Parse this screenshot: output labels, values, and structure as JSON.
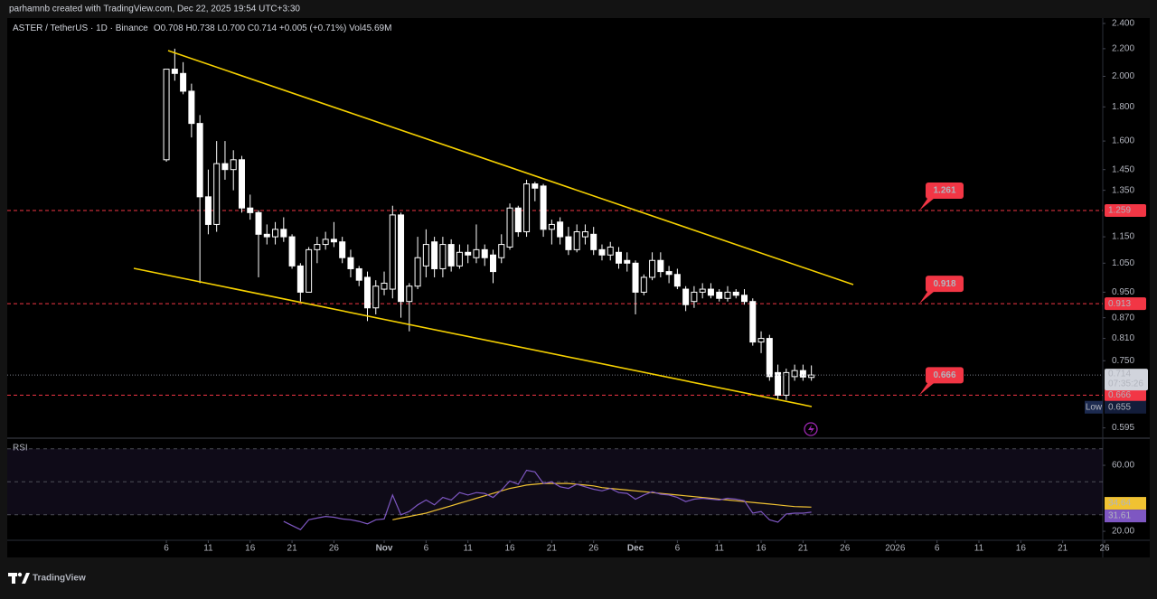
{
  "header": {
    "credit": "parhamnb created with TradingView.com, Dec 22, 2025 19:54 UTC+3:30"
  },
  "footer": {
    "brand": "TradingView"
  },
  "chart_data": [
    {
      "type": "candlestick",
      "title": "ASTER / TetherUS · 1D · Binance",
      "ohlc": "O0.708 H0.738 L0.700 C0.714 +0.005 (+0.71%) Vol45.69M",
      "x": [
        "2025-10-06",
        "2025-10-07",
        "2025-10-08",
        "2025-10-09",
        "2025-10-10",
        "2025-10-11",
        "2025-10-12",
        "2025-10-13",
        "2025-10-14",
        "2025-10-15",
        "2025-10-16",
        "2025-10-17",
        "2025-10-18",
        "2025-10-19",
        "2025-10-20",
        "2025-10-21",
        "2025-10-22",
        "2025-10-23",
        "2025-10-24",
        "2025-10-25",
        "2025-10-26",
        "2025-10-27",
        "2025-10-28",
        "2025-10-29",
        "2025-10-30",
        "2025-10-31",
        "2025-11-01",
        "2025-11-02",
        "2025-11-03",
        "2025-11-04",
        "2025-11-05",
        "2025-11-06",
        "2025-11-07",
        "2025-11-08",
        "2025-11-09",
        "2025-11-10",
        "2025-11-11",
        "2025-11-12",
        "2025-11-13",
        "2025-11-14",
        "2025-11-15",
        "2025-11-16",
        "2025-11-17",
        "2025-11-18",
        "2025-11-19",
        "2025-11-20",
        "2025-11-21",
        "2025-11-22",
        "2025-11-23",
        "2025-11-24",
        "2025-11-25",
        "2025-11-26",
        "2025-11-27",
        "2025-11-28",
        "2025-11-29",
        "2025-11-30",
        "2025-12-01",
        "2025-12-02",
        "2025-12-03",
        "2025-12-04",
        "2025-12-05",
        "2025-12-06",
        "2025-12-07",
        "2025-12-08",
        "2025-12-09",
        "2025-12-10",
        "2025-12-11",
        "2025-12-12",
        "2025-12-13",
        "2025-12-14",
        "2025-12-15",
        "2025-12-16",
        "2025-12-17",
        "2025-12-18",
        "2025-12-19",
        "2025-12-20",
        "2025-12-21",
        "2025-12-22"
      ],
      "open": [
        1.5,
        2.05,
        2.02,
        1.9,
        1.7,
        1.32,
        1.2,
        1.48,
        1.45,
        1.5,
        1.27,
        1.25,
        1.16,
        1.15,
        1.18,
        1.15,
        1.04,
        0.95,
        1.1,
        1.12,
        1.14,
        1.13,
        1.07,
        1.03,
        1.0,
        0.9,
        0.96,
        0.96,
        1.24,
        0.92,
        0.97,
        1.04,
        1.13,
        1.03,
        1.12,
        1.04,
        1.09,
        1.07,
        1.1,
        1.08,
        1.07,
        1.11,
        1.27,
        1.17,
        1.38,
        1.37,
        1.18,
        1.21,
        1.15,
        1.1,
        1.15,
        1.16,
        1.1,
        1.08,
        1.09,
        1.06,
        1.05,
        0.95,
        1.0,
        1.06,
        1.02,
        1.01,
        0.96,
        0.92,
        0.95,
        0.96,
        0.95,
        0.93,
        0.95,
        0.94,
        0.92,
        0.8,
        0.81,
        0.72,
        0.666,
        0.71,
        0.725,
        0.708
      ],
      "high": [
        2.05,
        2.2,
        2.1,
        1.95,
        1.75,
        1.45,
        1.6,
        1.6,
        1.55,
        1.52,
        1.33,
        1.26,
        1.2,
        1.21,
        1.23,
        1.16,
        1.05,
        1.11,
        1.15,
        1.17,
        1.21,
        1.15,
        1.1,
        1.04,
        1.02,
        0.99,
        1.02,
        1.28,
        1.25,
        0.98,
        1.15,
        1.18,
        1.15,
        1.15,
        1.14,
        1.12,
        1.12,
        1.2,
        1.12,
        1.1,
        1.16,
        1.29,
        1.28,
        1.4,
        1.39,
        1.38,
        1.22,
        1.23,
        1.19,
        1.2,
        1.2,
        1.19,
        1.12,
        1.13,
        1.11,
        1.09,
        1.06,
        1.01,
        1.09,
        1.09,
        1.04,
        1.03,
        0.97,
        0.97,
        0.98,
        0.98,
        0.96,
        0.97,
        0.96,
        0.96,
        0.93,
        0.83,
        0.82,
        0.74,
        0.73,
        0.74,
        0.74,
        0.738
      ],
      "low": [
        1.49,
        1.97,
        1.88,
        1.62,
        0.98,
        1.16,
        1.17,
        1.4,
        1.35,
        1.25,
        1.22,
        1.0,
        1.12,
        1.12,
        1.13,
        1.03,
        0.92,
        0.95,
        1.05,
        1.1,
        1.11,
        1.05,
        1.0,
        0.97,
        0.86,
        0.88,
        0.94,
        0.93,
        0.87,
        0.83,
        0.96,
        1.0,
        1.0,
        1.0,
        1.02,
        1.03,
        1.05,
        1.05,
        1.04,
        0.98,
        1.05,
        1.1,
        1.15,
        1.15,
        1.3,
        1.15,
        1.12,
        1.12,
        1.08,
        1.09,
        1.12,
        1.08,
        1.06,
        1.06,
        1.03,
        1.02,
        0.88,
        0.94,
        0.99,
        1.0,
        0.98,
        0.96,
        0.89,
        0.9,
        0.93,
        0.93,
        0.92,
        0.92,
        0.93,
        0.91,
        0.79,
        0.77,
        0.7,
        0.655,
        0.655,
        0.7,
        0.7,
        0.7
      ],
      "close": [
        2.05,
        2.02,
        1.9,
        1.7,
        1.32,
        1.2,
        1.48,
        1.45,
        1.5,
        1.27,
        1.25,
        1.16,
        1.15,
        1.18,
        1.15,
        1.04,
        0.95,
        1.1,
        1.12,
        1.14,
        1.13,
        1.07,
        1.03,
        0.99,
        0.9,
        0.97,
        0.98,
        1.24,
        0.92,
        0.97,
        1.07,
        1.12,
        1.03,
        1.12,
        1.04,
        1.09,
        1.08,
        1.1,
        1.07,
        1.02,
        1.12,
        1.27,
        1.17,
        1.38,
        1.36,
        1.18,
        1.2,
        1.15,
        1.1,
        1.17,
        1.17,
        1.1,
        1.08,
        1.11,
        1.05,
        1.05,
        0.95,
        1.0,
        1.06,
        1.02,
        1.01,
        0.97,
        0.91,
        0.95,
        0.96,
        0.94,
        0.93,
        0.95,
        0.94,
        0.92,
        0.8,
        0.81,
        0.71,
        0.666,
        0.72,
        0.725,
        0.709,
        0.714
      ],
      "up_color": "#ffffff",
      "down_color": "#ffffff",
      "countdown": "07:35:26",
      "low_label": "Low",
      "log_scale": true,
      "xlim": [
        "2025-09-17",
        "2026-01-26"
      ],
      "xticks": [
        {
          "value": "2025-10-06",
          "label": "6"
        },
        {
          "value": "2025-10-11",
          "label": "11"
        },
        {
          "value": "2025-10-16",
          "label": "16"
        },
        {
          "value": "2025-10-21",
          "label": "21"
        },
        {
          "value": "2025-10-26",
          "label": "26"
        },
        {
          "value": "2025-11-01",
          "label": "Nov"
        },
        {
          "value": "2025-11-06",
          "label": "6"
        },
        {
          "value": "2025-11-11",
          "label": "11"
        },
        {
          "value": "2025-11-16",
          "label": "16"
        },
        {
          "value": "2025-11-21",
          "label": "21"
        },
        {
          "value": "2025-11-26",
          "label": "26"
        },
        {
          "value": "2025-12-01",
          "label": "Dec"
        },
        {
          "value": "2025-12-06",
          "label": "6"
        },
        {
          "value": "2025-12-11",
          "label": "11"
        },
        {
          "value": "2025-12-16",
          "label": "16"
        },
        {
          "value": "2025-12-21",
          "label": "21"
        },
        {
          "value": "2025-12-26",
          "label": "26"
        },
        {
          "value": "2026-01-01",
          "label": "2026"
        },
        {
          "value": "2026-01-06",
          "label": "6"
        },
        {
          "value": "2026-01-11",
          "label": "11"
        },
        {
          "value": "2026-01-16",
          "label": "16"
        },
        {
          "value": "2026-01-21",
          "label": "21"
        },
        {
          "value": "2026-01-26",
          "label": "26"
        }
      ],
      "ylim": [
        0.576,
        2.445
      ],
      "yticks": [
        {
          "value": 2.4,
          "label": "2.400"
        },
        {
          "value": 2.2,
          "label": "2.200"
        },
        {
          "value": 2.0,
          "label": "2.000"
        },
        {
          "value": 1.8,
          "label": "1.800"
        },
        {
          "value": 1.6,
          "label": "1.600"
        },
        {
          "value": 1.45,
          "label": "1.450"
        },
        {
          "value": 1.35,
          "label": "1.350"
        },
        {
          "value": 1.15,
          "label": "1.150"
        },
        {
          "value": 1.05,
          "label": "1.050"
        },
        {
          "value": 0.95,
          "label": "0.950"
        },
        {
          "value": 0.87,
          "label": "0.870"
        },
        {
          "value": 0.81,
          "label": "0.810"
        },
        {
          "value": 0.75,
          "label": "0.750"
        },
        0.595
      ],
      "levels": [
        1.259,
        0.913,
        0.666
      ],
      "level_notes": [
        1.261,
        0.918,
        0.666
      ],
      "level_color": "#f23645"
    },
    {
      "type": "line",
      "title": "RSI",
      "series": [
        {
          "color": "#f0c232",
          "values": [
            null,
            null,
            null,
            null,
            null,
            null,
            null,
            null,
            null,
            null,
            null,
            null,
            null,
            null,
            null,
            null,
            null,
            null,
            null,
            null,
            null,
            null,
            null,
            null,
            null,
            null,
            null,
            27,
            28,
            29,
            30,
            31,
            32.5,
            34,
            35.5,
            37,
            38.5,
            40,
            41.5,
            43,
            44.5,
            46,
            47,
            48,
            48.5,
            49,
            49,
            49,
            49,
            48.5,
            48,
            47.5,
            46.5,
            46,
            45.5,
            45,
            44.5,
            44,
            43.5,
            43,
            42.5,
            42,
            41.5,
            41,
            40.5,
            40,
            39.5,
            39,
            38.5,
            38,
            37.5,
            37,
            36.5,
            36,
            35.5,
            35,
            34.8,
            34.64
          ]
        },
        {
          "color": "#7e57c2",
          "values": [
            null,
            null,
            null,
            null,
            null,
            null,
            null,
            null,
            null,
            null,
            null,
            null,
            null,
            null,
            26,
            23.5,
            21,
            27,
            28,
            29,
            28.5,
            27.5,
            27,
            26,
            24.5,
            27,
            27.5,
            42,
            30,
            32,
            36,
            39,
            36,
            40.5,
            39,
            43.5,
            42,
            43.5,
            43,
            40.5,
            45,
            50.5,
            48.5,
            57,
            56,
            49,
            50,
            47,
            46,
            48.5,
            47,
            45.5,
            44.5,
            46,
            43.5,
            43,
            39.5,
            42,
            44,
            42.5,
            42,
            40.5,
            38,
            39.5,
            40,
            39.5,
            39,
            40,
            39.5,
            38.5,
            31,
            32,
            27,
            25.5,
            30.5,
            31,
            31,
            31.61
          ]
        }
      ],
      "ylim": [
        15.1,
        75.9
      ],
      "yticks": [
        {
          "value": 60,
          "label": "60.00"
        },
        {
          "value": 20,
          "label": "20.00"
        }
      ],
      "levels": [
        70,
        50,
        30
      ]
    }
  ]
}
